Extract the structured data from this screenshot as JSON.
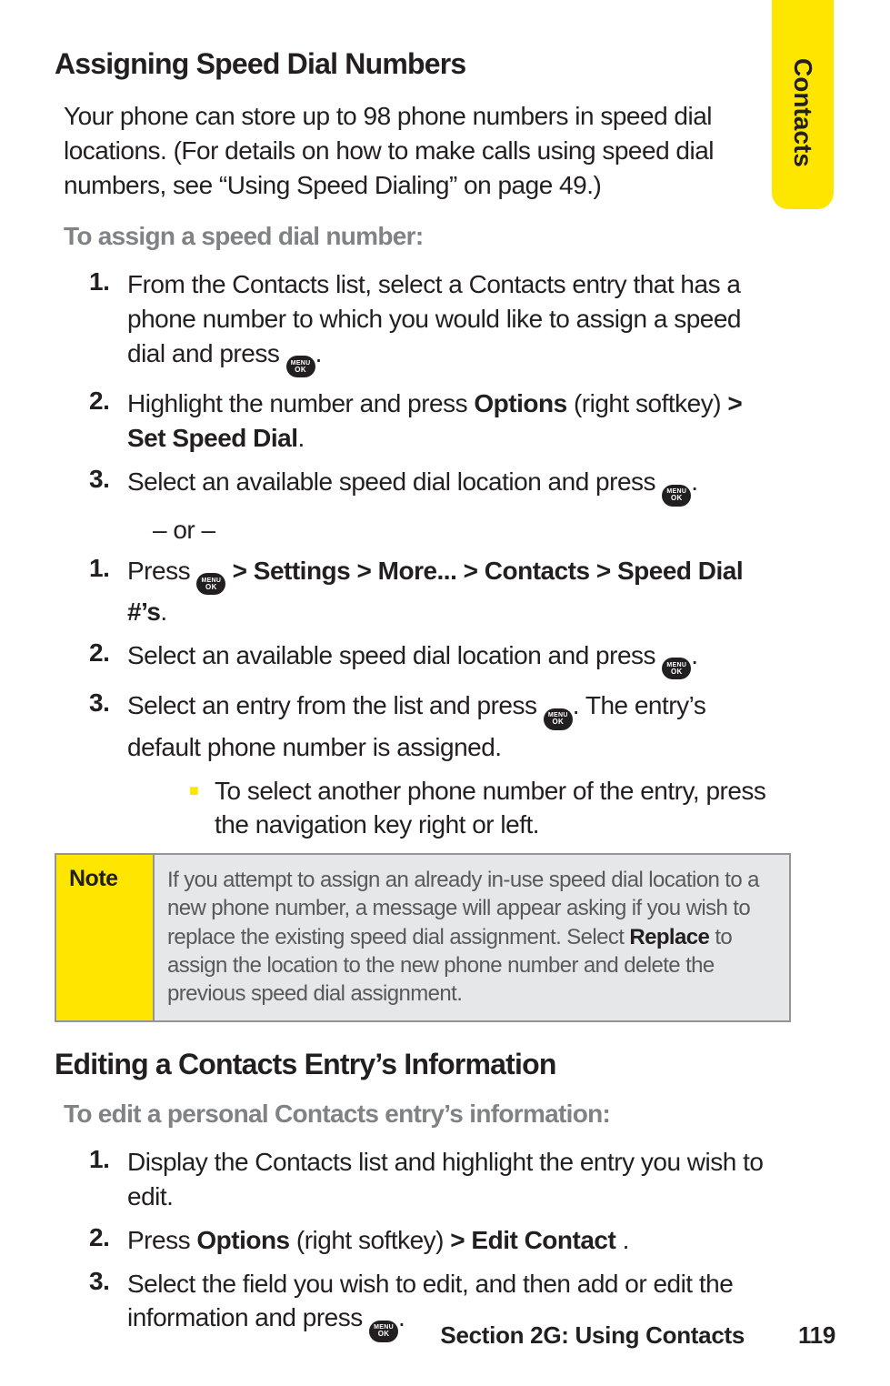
{
  "tab": {
    "label": "Contacts",
    "bg_color": "#ffe600",
    "text_color": "#231f20"
  },
  "heading1": "Assigning Speed Dial Numbers",
  "intro": "Your phone can store up to 98 phone numbers in speed dial locations. (For details on how to make calls using speed dial numbers, see “Using Speed Dialing” on page 49.)",
  "sub1": "To assign a speed dial number:",
  "listA": {
    "i1": {
      "num": "1.",
      "pre": "From the Contacts list, select a Contacts entry that has a phone number to which you would like to assign a speed dial and press ",
      "post": "."
    },
    "i2": {
      "num": "2.",
      "pre": "Highlight the number and press ",
      "b1": "Options",
      "mid": " (right softkey) ",
      "b2": "> Set Speed Dial",
      "post": "."
    },
    "i3": {
      "num": "3.",
      "pre": "Select an available speed dial location and press ",
      "post": "."
    }
  },
  "or_text": "– or –",
  "listB": {
    "i1": {
      "num": "1.",
      "pre": "Press ",
      "b1": " > Settings > More... > Contacts > Speed Dial #’s",
      "post": "."
    },
    "i2": {
      "num": "2.",
      "pre": "Select an available speed dial location and press ",
      "post": "."
    },
    "i3": {
      "num": "3.",
      "pre": "Select an entry from the list and press ",
      "mid": ". The entry’s default phone number is assigned."
    }
  },
  "sub_bullet": "To select another phone number of the entry, press the navigation key right or left.",
  "note": {
    "label": "Note",
    "text_pre": "If you attempt to assign an already in-use speed dial location to a new phone number, a message will appear asking if you wish to replace the existing speed dial assignment. Select ",
    "bold": "Replace",
    "text_post": " to assign the location to the new phone number and delete the previous speed dial assignment."
  },
  "heading2": "Editing a Contacts Entry’s Information",
  "sub2": "To edit a personal Contacts entry’s information:",
  "listC": {
    "i1": {
      "num": "1.",
      "txt": "Display the Contacts list and highlight the entry you wish to edit."
    },
    "i2": {
      "num": "2.",
      "pre": "Press ",
      "b1": "Options",
      "mid": " (right softkey) ",
      "b2": "> Edit Contact ",
      "post": "."
    },
    "i3": {
      "num": "3.",
      "pre": "Select the field you wish to edit, and then add or edit the information and press ",
      "post": "."
    }
  },
  "footer": {
    "section": "Section 2G: Using Contacts",
    "page": "119"
  },
  "menu_ok": {
    "line1": "MENU",
    "line2": "OK"
  },
  "colors": {
    "accent": "#ffe600",
    "gray_text": "#808285",
    "note_bg": "#e6e7e8",
    "border": "#939598",
    "body": "#231f20"
  }
}
